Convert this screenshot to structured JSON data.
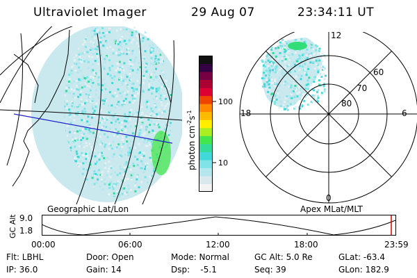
{
  "header": {
    "instrument": "Ultraviolet Imager",
    "date": "29 Aug 07",
    "time": "23:34:11 UT"
  },
  "geo_panel": {
    "label": "Geographic Lat/Lon"
  },
  "apex_panel": {
    "label": "Apex MLat/MLT",
    "mlt_labels": [
      "12",
      "18",
      "6",
      "0"
    ],
    "mlat_labels": [
      "60",
      "70",
      "80"
    ]
  },
  "colorbar": {
    "unit_label": "photon cm-2s-1",
    "unit_main": "photon cm",
    "unit_exp1": "-2",
    "unit_s": "s",
    "unit_exp2": "-1",
    "tick_labels": [
      "100",
      "10"
    ],
    "colors": [
      "#f2f2f2",
      "#d9e8ec",
      "#b4e6ee",
      "#7fe3e8",
      "#40d8d8",
      "#33dd99",
      "#44e64d",
      "#aaee22",
      "#ffee00",
      "#ffbb00",
      "#ff8800",
      "#ee4400",
      "#dd0033",
      "#aa0033",
      "#770044",
      "#330044",
      "#111111"
    ]
  },
  "timeline": {
    "axis_title": "GC Alt",
    "y_labels": [
      "9.0",
      "1.8"
    ],
    "x_labels": [
      "00:00",
      "06:00",
      "12:00",
      "18:00",
      "23:59"
    ]
  },
  "info": {
    "filter": "Flt: LBHL",
    "ip": "IP: 36.0",
    "door": "Door: Open",
    "gain": "Gain: 14",
    "mode": "Mode: Normal",
    "dsp": "Dsp:    -5.1",
    "gcalt": "GC Alt: 5.0 Re",
    "seq": "Seq: 39",
    "glat": "GLat: -63.4",
    "glon": "GLon: 182.9"
  }
}
